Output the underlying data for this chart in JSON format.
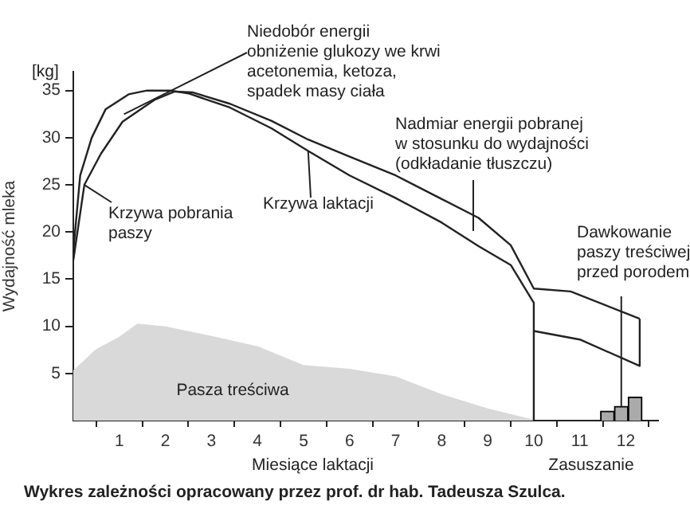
{
  "chart_data": {
    "type": "line",
    "ylabel": "Wydajność mleka",
    "xlabel": "Miesiące laktacji",
    "xlim": [
      0,
      12.7
    ],
    "ylim": [
      0,
      37
    ],
    "xticks": [
      1,
      2,
      3,
      4,
      5,
      6,
      7,
      8,
      9,
      10,
      11,
      12
    ],
    "yticks": [
      5,
      10,
      15,
      20,
      25,
      30,
      35
    ],
    "grid": false,
    "legend": false,
    "series": [
      {
        "name": "Krzywa laktacji",
        "color": "#222222",
        "x": [
          0,
          0.15,
          0.4,
          0.7,
          1.2,
          1.6,
          2.1,
          2.5,
          3.4,
          4.3,
          5.1,
          6,
          7,
          8,
          8.8,
          9.5,
          10,
          10
        ],
        "values": [
          18,
          26,
          30,
          33,
          34.6,
          35,
          35,
          34.7,
          33.2,
          31,
          28.6,
          26,
          23.6,
          21,
          18.5,
          16.5,
          12.5,
          0
        ]
      },
      {
        "color": "#222222",
        "x": [
          0,
          0.24,
          0.6,
          1.07,
          1.76,
          2.2,
          2.6,
          3.4,
          4.3,
          5.1,
          6,
          7,
          8,
          8.8,
          9.5,
          10,
          10.8,
          12.3
        ],
        "values": [
          17,
          25,
          28.3,
          31.7,
          34,
          34.9,
          34.8,
          33.6,
          31.8,
          29.8,
          28,
          26,
          23.5,
          21.5,
          18.6,
          14,
          13.7,
          10.8
        ]
      },
      {
        "color": "#222222",
        "x": [
          10,
          11,
          12.3,
          12.3
        ],
        "values": [
          9.5,
          8.6,
          5.8,
          10.8
        ]
      },
      {
        "name": "Pasza treściwa",
        "type": "area",
        "color": "#d9d9d9",
        "x": [
          0,
          0.5,
          1,
          1.4,
          2,
          3,
          4,
          5,
          6,
          7,
          8,
          9,
          10
        ],
        "values": [
          5.2,
          7.5,
          8.8,
          10.2,
          9.9,
          8.9,
          7.8,
          5.8,
          5.4,
          4.6,
          2.7,
          1.2,
          0
        ]
      },
      {
        "type": "bar",
        "color": "#aaaaaa",
        "x": [
          11.6,
          11.9,
          12.2
        ],
        "values": [
          1,
          1.5,
          2.5
        ]
      }
    ],
    "annotations": [
      "[kg]",
      {
        "text": "Niedobór energii\nobniżenie glukozy we krwi\nacetonemia, ketoza,\nspadek masy ciała",
        "x": 1.1,
        "y": 32.5
      },
      "Nadmiar energii pobranej\nw stosunku do wydajności\n(odkładanie tłuszczu)",
      {
        "text": "Dawkowanie\npaszy treściwej\nprzed porodem",
        "x": 11.9,
        "y": 1.5
      },
      "Zasuszanie",
      "Wykres zależności opracowany przez prof. dr hab. Tadeusza Szulca.",
      {
        "text": "Krzywa pobrania paszy",
        "x": 0.24,
        "y": 25
      }
    ]
  }
}
